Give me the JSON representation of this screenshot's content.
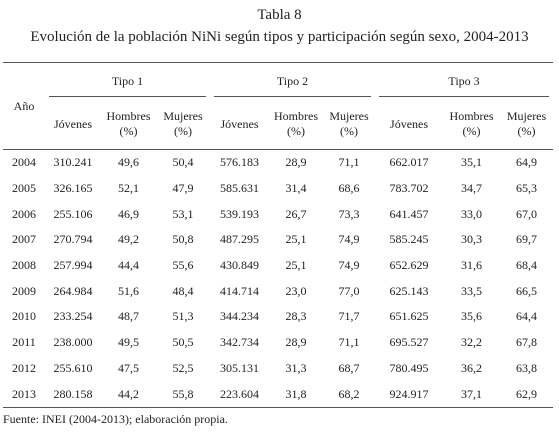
{
  "header": {
    "title": "Tabla 8",
    "subtitle": "Evolución de la población NiNi según tipos y participación según sexo, 2004-2013"
  },
  "table": {
    "year_header": "Año",
    "groups": [
      "Tipo 1",
      "Tipo 2",
      "Tipo 3"
    ],
    "subheaders": [
      [
        "Jóvenes",
        "Hombres (%)",
        "Mujeres (%)"
      ],
      [
        "Jóvenes",
        "Hombres (%)",
        "Mujeres (%)"
      ],
      [
        "Jóvenes",
        "Hombres (%)",
        "Mujeres (%)"
      ]
    ],
    "rows": [
      [
        "2004",
        "310.241",
        "49,6",
        "50,4",
        "576.183",
        "28,9",
        "71,1",
        "662.017",
        "35,1",
        "64,9"
      ],
      [
        "2005",
        "326.165",
        "52,1",
        "47,9",
        "585.631",
        "31,4",
        "68,6",
        "783.702",
        "34,7",
        "65,3"
      ],
      [
        "2006",
        "255.106",
        "46,9",
        "53,1",
        "539.193",
        "26,7",
        "73,3",
        "641.457",
        "33,0",
        "67,0"
      ],
      [
        "2007",
        "270.794",
        "49,2",
        "50,8",
        "487.295",
        "25,1",
        "74,9",
        "585.245",
        "30,3",
        "69,7"
      ],
      [
        "2008",
        "257.994",
        "44,4",
        "55,6",
        "430.849",
        "25,1",
        "74,9",
        "652.629",
        "31,6",
        "68,4"
      ],
      [
        "2009",
        "264.984",
        "51,6",
        "48,4",
        "414.714",
        "23,0",
        "77,0",
        "625.143",
        "33,5",
        "66,5"
      ],
      [
        "2010",
        "233.254",
        "48,7",
        "51,3",
        "344.234",
        "28,3",
        "71,7",
        "651.625",
        "35,6",
        "64,4"
      ],
      [
        "2011",
        "238.000",
        "49,5",
        "50,5",
        "342.734",
        "28,9",
        "71,1",
        "695.527",
        "32,2",
        "67,8"
      ],
      [
        "2012",
        "255.610",
        "47,5",
        "52,5",
        "305.131",
        "31,3",
        "68,7",
        "780.495",
        "36,2",
        "63,8"
      ],
      [
        "2013",
        "280.158",
        "44,2",
        "55,8",
        "223.604",
        "31,8",
        "68,2",
        "924.917",
        "37,1",
        "62,9"
      ]
    ]
  },
  "footer": {
    "source": "Fuente: INEI (2004-2013); elaboración propia."
  }
}
